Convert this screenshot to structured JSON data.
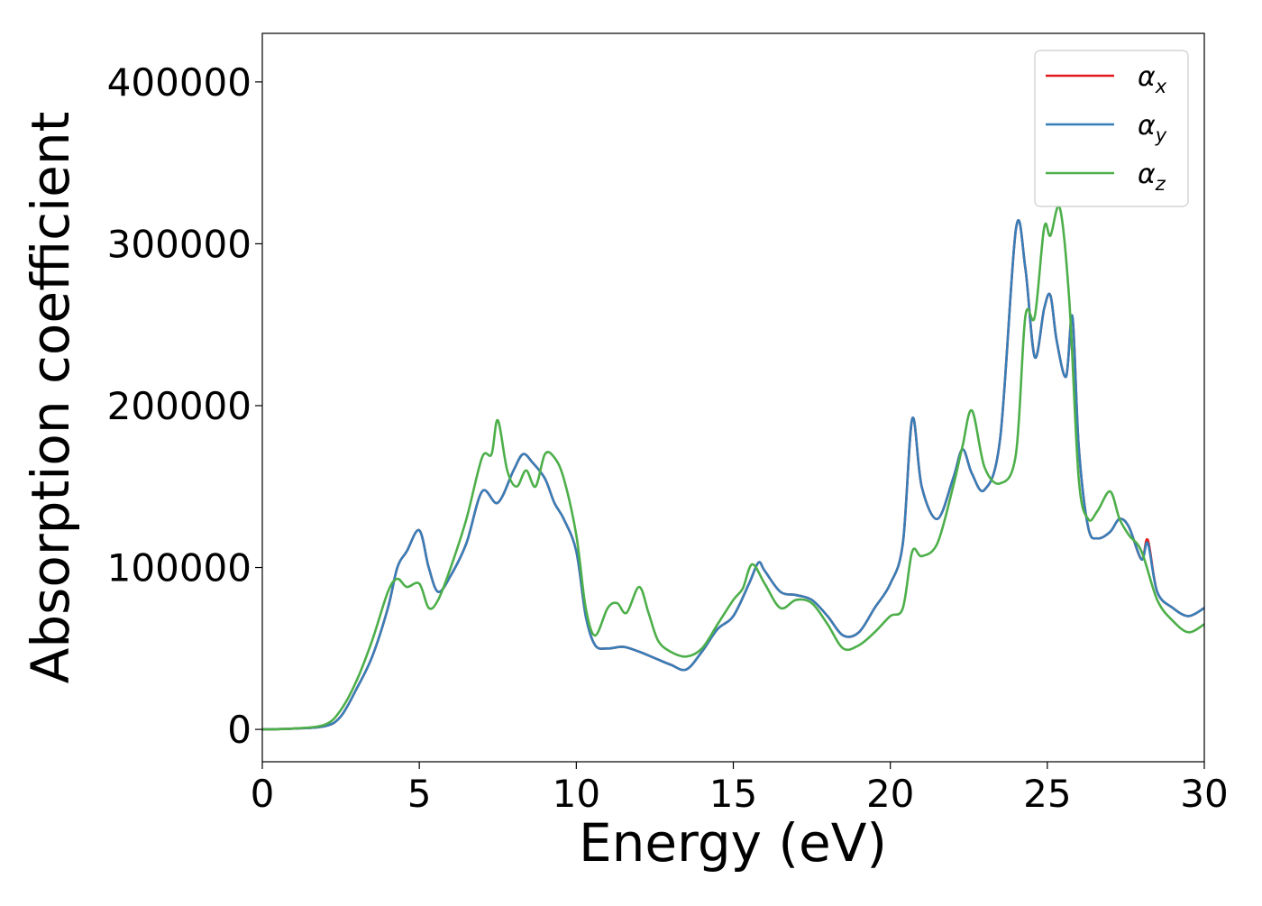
{
  "chart_data": {
    "type": "line",
    "title": "",
    "xlabel": "Energy (eV)",
    "ylabel": "Absorption coefficient",
    "xlim": [
      0,
      30
    ],
    "ylim": [
      -20000,
      430000
    ],
    "xticks": [
      "0",
      "5",
      "10",
      "15",
      "20",
      "25",
      "30"
    ],
    "yticks": [
      "0",
      "100000",
      "200000",
      "300000",
      "400000"
    ],
    "grid": false,
    "legend_position": "top-right",
    "series": [
      {
        "name": "α",
        "subscript": "x",
        "color": "#e41a1c",
        "x": [
          0,
          1,
          2,
          2.5,
          3,
          3.5,
          4,
          4.3,
          4.6,
          5,
          5.3,
          5.6,
          6,
          6.5,
          7,
          7.5,
          8,
          8.3,
          8.6,
          9,
          9.3,
          9.6,
          10,
          10.3,
          10.6,
          11,
          11.5,
          12,
          12.5,
          13,
          13.5,
          14,
          14.5,
          15,
          15.5,
          15.8,
          16,
          16.5,
          17,
          17.5,
          18,
          18.5,
          19,
          19.5,
          20,
          20.4,
          20.7,
          21,
          21.5,
          22,
          22.3,
          22.6,
          23,
          23.5,
          24,
          24.3,
          24.6,
          24.9,
          25.1,
          25.3,
          25.6,
          25.8,
          26,
          26.3,
          26.6,
          27,
          27.3,
          27.6,
          28,
          28.2,
          28.5,
          29,
          29.5,
          30
        ],
        "y": [
          0,
          500,
          2000,
          8000,
          25000,
          45000,
          75000,
          100000,
          110000,
          123000,
          100000,
          85000,
          95000,
          115000,
          147000,
          140000,
          160000,
          170000,
          165000,
          155000,
          140000,
          130000,
          110000,
          70000,
          52000,
          50000,
          51000,
          48000,
          44000,
          40000,
          37000,
          48000,
          62000,
          70000,
          90000,
          103000,
          98000,
          85000,
          83000,
          80000,
          70000,
          58000,
          60000,
          75000,
          90000,
          115000,
          192000,
          150000,
          130000,
          155000,
          173000,
          158000,
          148000,
          180000,
          309000,
          285000,
          230000,
          260000,
          268000,
          240000,
          218000,
          255000,
          175000,
          125000,
          118000,
          122000,
          130000,
          125000,
          105000,
          117000,
          85000,
          75000,
          70000,
          75000
        ]
      },
      {
        "name": "α",
        "subscript": "y",
        "color": "#377eb8",
        "x": [
          0,
          1,
          2,
          2.5,
          3,
          3.5,
          4,
          4.3,
          4.6,
          5,
          5.3,
          5.6,
          6,
          6.5,
          7,
          7.5,
          8,
          8.3,
          8.6,
          9,
          9.3,
          9.6,
          10,
          10.3,
          10.6,
          11,
          11.5,
          12,
          12.5,
          13,
          13.5,
          14,
          14.5,
          15,
          15.5,
          15.8,
          16,
          16.5,
          17,
          17.5,
          18,
          18.5,
          19,
          19.5,
          20,
          20.4,
          20.7,
          21,
          21.5,
          22,
          22.3,
          22.6,
          23,
          23.5,
          24,
          24.3,
          24.6,
          24.9,
          25.1,
          25.3,
          25.6,
          25.8,
          26,
          26.3,
          26.6,
          27,
          27.3,
          27.6,
          28,
          28.2,
          28.5,
          29,
          29.5,
          30
        ],
        "y": [
          0,
          500,
          2000,
          8000,
          25000,
          45000,
          75000,
          100000,
          110000,
          123000,
          100000,
          85000,
          95000,
          115000,
          147000,
          140000,
          160000,
          170000,
          165000,
          155000,
          140000,
          130000,
          110000,
          70000,
          52000,
          50000,
          51000,
          48000,
          44000,
          40000,
          37000,
          48000,
          62000,
          70000,
          90000,
          103000,
          98000,
          85000,
          83000,
          80000,
          70000,
          58000,
          60000,
          75000,
          90000,
          115000,
          192000,
          150000,
          130000,
          155000,
          173000,
          158000,
          148000,
          180000,
          309000,
          285000,
          230000,
          260000,
          268000,
          240000,
          218000,
          255000,
          175000,
          125000,
          118000,
          122000,
          130000,
          125000,
          105000,
          115000,
          85000,
          75000,
          70000,
          75000
        ]
      },
      {
        "name": "α",
        "subscript": "z",
        "color": "#4daf4a",
        "x": [
          0,
          1,
          2,
          2.5,
          3,
          3.5,
          4,
          4.3,
          4.6,
          5,
          5.3,
          5.6,
          6,
          6.5,
          7,
          7.3,
          7.5,
          7.8,
          8.1,
          8.4,
          8.7,
          9,
          9.3,
          9.6,
          10,
          10.3,
          10.6,
          11,
          11.3,
          11.6,
          12,
          12.3,
          12.6,
          13,
          13.5,
          14,
          14.5,
          15,
          15.3,
          15.6,
          16,
          16.5,
          17,
          17.5,
          18,
          18.5,
          19,
          19.5,
          20,
          20.4,
          20.7,
          21,
          21.5,
          22,
          22.3,
          22.6,
          23,
          23.5,
          24,
          24.3,
          24.6,
          24.9,
          25.1,
          25.4,
          25.7,
          26,
          26.3,
          26.6,
          27,
          27.3,
          27.6,
          28,
          28.5,
          29,
          29.5,
          30
        ],
        "y": [
          0,
          500,
          3000,
          12000,
          30000,
          55000,
          85000,
          93000,
          88000,
          90000,
          75000,
          80000,
          100000,
          130000,
          168000,
          170000,
          191000,
          160000,
          150000,
          160000,
          150000,
          170000,
          168000,
          155000,
          120000,
          75000,
          58000,
          75000,
          78000,
          72000,
          88000,
          72000,
          55000,
          48000,
          45000,
          50000,
          65000,
          80000,
          87000,
          102000,
          90000,
          75000,
          80000,
          78000,
          65000,
          50000,
          52000,
          60000,
          70000,
          75000,
          110000,
          107000,
          115000,
          150000,
          175000,
          197000,
          162000,
          152000,
          170000,
          255000,
          255000,
          310000,
          305000,
          322000,
          265000,
          155000,
          130000,
          135000,
          147000,
          130000,
          120000,
          110000,
          80000,
          67000,
          60000,
          65000
        ]
      }
    ]
  }
}
